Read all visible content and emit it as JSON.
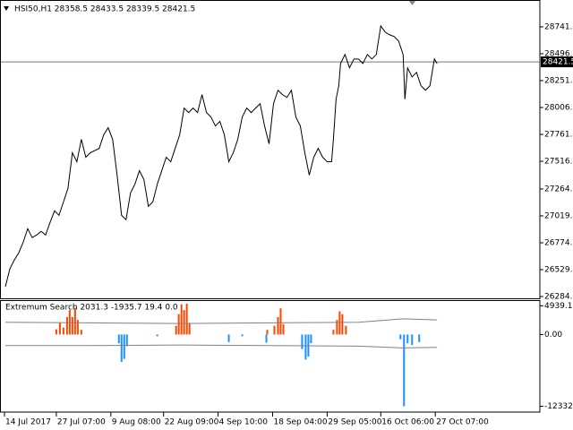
{
  "chart_data": [
    {
      "type": "line",
      "title": "HSI50,H1 28358.5 28433.5 28339.5 28421.5",
      "xlim": [
        0,
        603
      ],
      "xticks": [
        {
          "value": 4,
          "label": "14 Jul 2017"
        },
        {
          "value": 62,
          "label": "27 Jul 07:00"
        },
        {
          "value": 123,
          "label": "9 Aug 08:00"
        },
        {
          "value": 182,
          "label": "22 Aug 09:00"
        },
        {
          "value": 243,
          "label": "4 Sep 10:00"
        },
        {
          "value": 304,
          "label": "18 Sep 04:00"
        },
        {
          "value": 365,
          "label": "29 Sep 05:00"
        },
        {
          "value": 425,
          "label": "16 Oct 06:00"
        },
        {
          "value": 486,
          "label": "27 Oct 07:00"
        }
      ],
      "ylim": [
        26268,
        28977
      ],
      "yticks": [
        {
          "value": 28741,
          "label": "28741.0"
        },
        {
          "value": 28496,
          "label": "28496.0"
        },
        {
          "value": 28251,
          "label": "28251.0"
        },
        {
          "value": 28006,
          "label": "28006.0"
        },
        {
          "value": 27761,
          "label": "27761.0"
        },
        {
          "value": 27516,
          "label": "27516.0"
        },
        {
          "value": 27264,
          "label": "27264.0"
        },
        {
          "value": 27019,
          "label": "27019.0"
        },
        {
          "value": 26774,
          "label": "26774.0"
        },
        {
          "value": 26529,
          "label": "26529.0"
        },
        {
          "value": 26284,
          "label": "26284.0"
        }
      ],
      "current_price": {
        "value": 28421.5,
        "label": "28421.5"
      },
      "series": [
        {
          "color": "#000000",
          "x": [
            5,
            10,
            15,
            20,
            25,
            30,
            35,
            40,
            45,
            50,
            55,
            60,
            65,
            70,
            75,
            80,
            85,
            90,
            95,
            100,
            110,
            115,
            120,
            125,
            130,
            135,
            140,
            145,
            150,
            155,
            160,
            165,
            170,
            175,
            180,
            185,
            190,
            195,
            200,
            205,
            210,
            215,
            220,
            225,
            230,
            235,
            240,
            245,
            250,
            255,
            260,
            265,
            270,
            275,
            280,
            285,
            290,
            295,
            300,
            305,
            310,
            315,
            320,
            325,
            330,
            335,
            340,
            345,
            350,
            355,
            360,
            365,
            370,
            372,
            375,
            378,
            380,
            385,
            390,
            395,
            400,
            405,
            410,
            415,
            420,
            425,
            430,
            435,
            440,
            445,
            450,
            452,
            455,
            460,
            465,
            470,
            475,
            480,
            485,
            488
          ],
          "values": [
            26373,
            26536,
            26617,
            26683,
            26780,
            26902,
            26821,
            26845,
            26878,
            26845,
            26959,
            27065,
            27024,
            27146,
            27268,
            27594,
            27512,
            27716,
            27553,
            27594,
            27634,
            27757,
            27822,
            27716,
            27390,
            27024,
            26984,
            27228,
            27309,
            27431,
            27350,
            27106,
            27146,
            27309,
            27431,
            27553,
            27512,
            27634,
            27757,
            28001,
            27960,
            28001,
            27960,
            28123,
            27960,
            27919,
            27838,
            27879,
            27757,
            27512,
            27594,
            27716,
            27919,
            28001,
            27960,
            28001,
            28041,
            27838,
            27675,
            28041,
            28163,
            28123,
            28098,
            28163,
            27919,
            27838,
            27594,
            27390,
            27553,
            27634,
            27553,
            27512,
            27512,
            27716,
            28082,
            28204,
            28407,
            28489,
            28367,
            28448,
            28448,
            28407,
            28489,
            28448,
            28489,
            28749,
            28692,
            28668,
            28652,
            28611,
            28489,
            28082,
            28367,
            28285,
            28326,
            28204,
            28163,
            28204,
            28448,
            28407
          ]
        }
      ]
    },
    {
      "type": "bar",
      "title": "Extremum Search 2031.3 -1935.7 19.4 0.0",
      "xlim": [
        0,
        603
      ],
      "ylim": [
        -13180,
        5760
      ],
      "yticks": [
        4939.1,
        {
          "value": 0,
          "label": "0.00"
        },
        -12332
      ],
      "series": [
        {
          "color": "#ff4500",
          "x": [
            62,
            66,
            70,
            74,
            77,
            80,
            83,
            86,
            90,
            196,
            199,
            202,
            205,
            208,
            211,
            298,
            306,
            310,
            313,
            316,
            372,
            376,
            379,
            382,
            386
          ],
          "values": [
            900,
            2000,
            1200,
            3000,
            4200,
            3000,
            4600,
            2500,
            800,
            1500,
            3500,
            5200,
            4200,
            5300,
            2000,
            800,
            1500,
            3000,
            4500,
            1800,
            800,
            2500,
            4000,
            3500,
            1500
          ]
        },
        {
          "color": "#1e90ff",
          "x": [
            132,
            135,
            138,
            141,
            175,
            255,
            270,
            297,
            337,
            341,
            344,
            347,
            447,
            451,
            455,
            460,
            468
          ],
          "values": [
            -1500,
            -4700,
            -4200,
            -2000,
            -300,
            -1300,
            -300,
            -1400,
            -2500,
            -4300,
            -3800,
            -1500,
            -800,
            -12332,
            -1500,
            -1800,
            -1300
          ]
        },
        {
          "type": "line",
          "color": "#808080",
          "x": [
            5,
            100,
            200,
            300,
            400,
            450,
            488
          ],
          "values": [
            2100,
            2000,
            1900,
            2000,
            2100,
            2700,
            2500
          ]
        },
        {
          "type": "line",
          "color": "#808080",
          "x": [
            5,
            100,
            200,
            300,
            400,
            450,
            488
          ],
          "values": [
            -1900,
            -1900,
            -1800,
            -1900,
            -2000,
            -2300,
            -2200
          ]
        }
      ]
    }
  ]
}
